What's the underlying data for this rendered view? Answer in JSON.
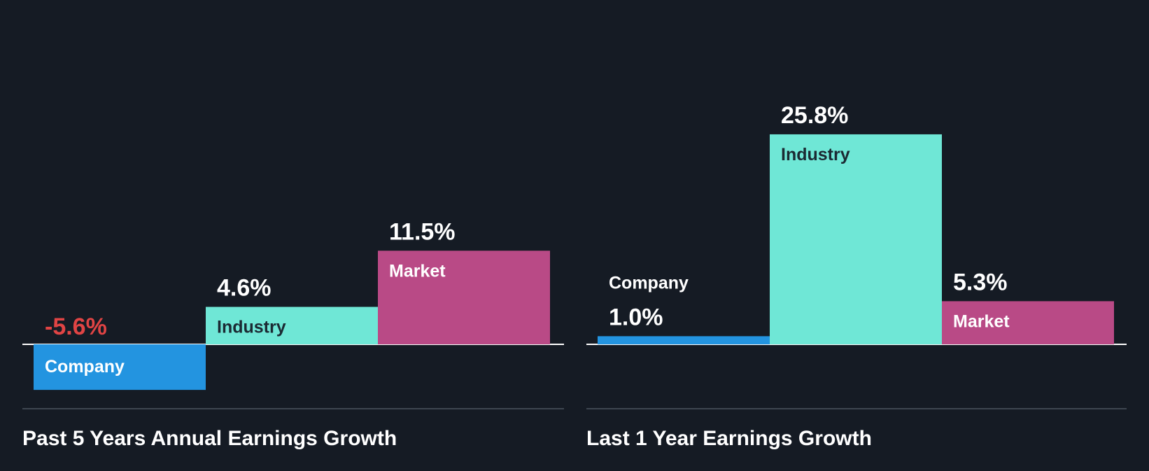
{
  "chart_data": [
    {
      "type": "bar",
      "title": "Past 5 Years Annual Earnings Growth",
      "categories": [
        "Company",
        "Industry",
        "Market"
      ],
      "values": [
        -5.6,
        4.6,
        11.5
      ],
      "value_labels": [
        "-5.6%",
        "4.6%",
        "11.5%"
      ],
      "colors": [
        "#2394e0",
        "#6fe7d6",
        "#b94a86"
      ],
      "negative_value_color": "#e04444",
      "ylim": [
        -5.6,
        25.8
      ]
    },
    {
      "type": "bar",
      "title": "Last 1 Year Earnings Growth",
      "categories": [
        "Company",
        "Industry",
        "Market"
      ],
      "values": [
        1.0,
        25.8,
        5.3
      ],
      "value_labels": [
        "1.0%",
        "25.8%",
        "5.3%"
      ],
      "colors": [
        "#2394e0",
        "#6fe7d6",
        "#b94a86"
      ],
      "negative_value_color": "#e04444",
      "ylim": [
        -5.6,
        25.8
      ]
    }
  ]
}
